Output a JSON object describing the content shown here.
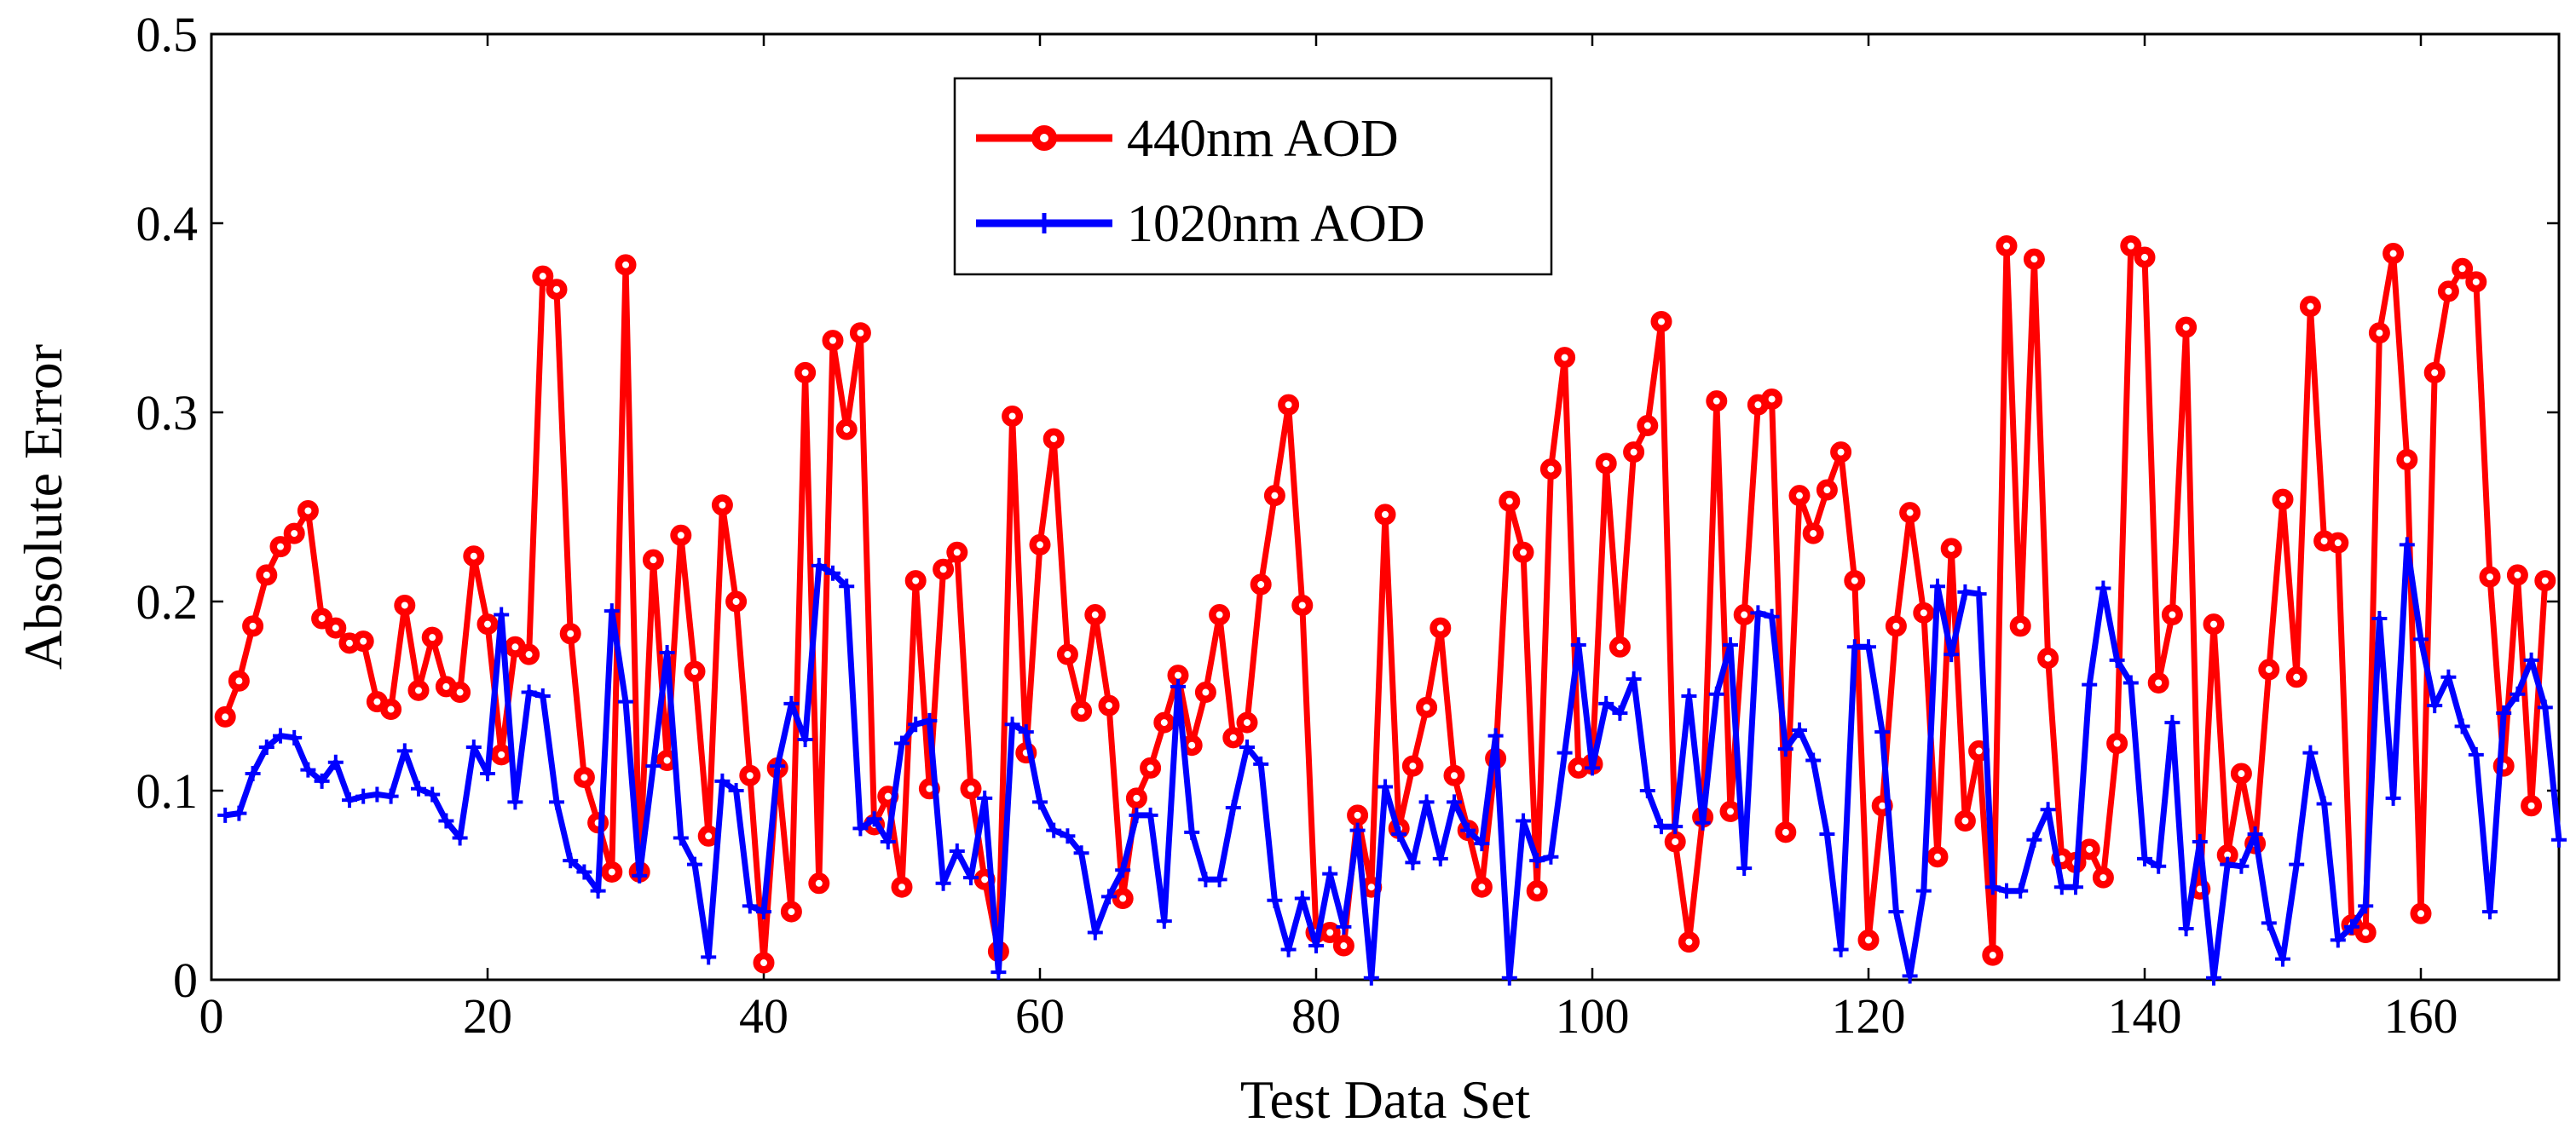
{
  "chart_data": {
    "type": "line",
    "title": "",
    "xlabel": "Test Data Set",
    "ylabel": "Absolute Error",
    "xlim": [
      0,
      170
    ],
    "ylim": [
      0,
      0.5
    ],
    "xticks": [
      0,
      20,
      40,
      60,
      80,
      100,
      120,
      140,
      160
    ],
    "yticks": [
      0,
      0.1,
      0.2,
      0.3,
      0.4,
      0.5
    ],
    "xtick_labels": [
      "0",
      "20",
      "40",
      "60",
      "80",
      "100",
      "120",
      "140",
      "160"
    ],
    "ytick_labels": [
      "0",
      "0.1",
      "0.2",
      "0.3",
      "0.4",
      "0.5"
    ],
    "grid": false,
    "legend_position": "top-center",
    "series": [
      {
        "name": "440nm AOD",
        "color": "#ff0000",
        "marker": "circle",
        "values": [
          0.139,
          0.158,
          0.187,
          0.214,
          0.229,
          0.236,
          0.248,
          0.191,
          0.186,
          0.178,
          0.179,
          0.147,
          0.143,
          0.198,
          0.153,
          0.181,
          0.155,
          0.152,
          0.224,
          0.188,
          0.119,
          0.176,
          0.172,
          0.372,
          0.365,
          0.183,
          0.107,
          0.083,
          0.057,
          0.378,
          0.057,
          0.222,
          0.116,
          0.235,
          0.163,
          0.076,
          0.251,
          0.2,
          0.108,
          0.009,
          0.112,
          0.036,
          0.321,
          0.051,
          0.338,
          0.291,
          0.342,
          0.082,
          0.097,
          0.049,
          0.211,
          0.101,
          0.217,
          0.226,
          0.101,
          0.053,
          0.015,
          0.298,
          0.12,
          0.23,
          0.286,
          0.172,
          0.142,
          0.193,
          0.145,
          0.043,
          0.096,
          0.112,
          0.136,
          0.161,
          0.124,
          0.152,
          0.193,
          0.128,
          0.136,
          0.209,
          0.256,
          0.304,
          0.198,
          0.025,
          0.025,
          0.018,
          0.087,
          0.049,
          0.246,
          0.08,
          0.113,
          0.144,
          0.186,
          0.108,
          0.079,
          0.049,
          0.117,
          0.253,
          0.226,
          0.047,
          0.27,
          0.329,
          0.112,
          0.114,
          0.273,
          0.176,
          0.279,
          0.293,
          0.348,
          0.073,
          0.02,
          0.086,
          0.306,
          0.089,
          0.193,
          0.304,
          0.307,
          0.078,
          0.256,
          0.236,
          0.259,
          0.279,
          0.211,
          0.021,
          0.092,
          0.187,
          0.247,
          0.194,
          0.065,
          0.228,
          0.084,
          0.121,
          0.013,
          0.388,
          0.187,
          0.381,
          0.17,
          0.064,
          0.062,
          0.069,
          0.054,
          0.125,
          0.388,
          0.382,
          0.157,
          0.193,
          0.345,
          0.048,
          0.188,
          0.066,
          0.109,
          0.072,
          0.164,
          0.254,
          0.16,
          0.356,
          0.232,
          0.231,
          0.029,
          0.025,
          0.342,
          0.384,
          0.275,
          0.035,
          0.321,
          0.364,
          0.376,
          0.369,
          0.213,
          0.113,
          0.214,
          0.092,
          0.211
        ]
      },
      {
        "name": "1020nm AOD",
        "color": "#0000ff",
        "marker": "plus",
        "values": [
          0.087,
          0.088,
          0.109,
          0.123,
          0.129,
          0.128,
          0.111,
          0.105,
          0.115,
          0.095,
          0.097,
          0.098,
          0.097,
          0.121,
          0.101,
          0.098,
          0.084,
          0.075,
          0.123,
          0.109,
          0.193,
          0.094,
          0.152,
          0.15,
          0.094,
          0.063,
          0.057,
          0.047,
          0.195,
          0.147,
          0.055,
          0.113,
          0.173,
          0.075,
          0.061,
          0.012,
          0.105,
          0.1,
          0.039,
          0.036,
          0.113,
          0.146,
          0.127,
          0.219,
          0.215,
          0.208,
          0.08,
          0.085,
          0.073,
          0.125,
          0.135,
          0.137,
          0.051,
          0.068,
          0.054,
          0.096,
          0.004,
          0.135,
          0.131,
          0.094,
          0.079,
          0.076,
          0.067,
          0.025,
          0.044,
          0.058,
          0.087,
          0.087,
          0.031,
          0.155,
          0.078,
          0.053,
          0.053,
          0.091,
          0.123,
          0.114,
          0.042,
          0.016,
          0.043,
          0.018,
          0.056,
          0.028,
          0.079,
          0.001,
          0.102,
          0.077,
          0.062,
          0.094,
          0.064,
          0.094,
          0.079,
          0.072,
          0.129,
          0.001,
          0.084,
          0.063,
          0.065,
          0.12,
          0.177,
          0.112,
          0.146,
          0.141,
          0.159,
          0.1,
          0.081,
          0.081,
          0.15,
          0.083,
          0.151,
          0.177,
          0.059,
          0.194,
          0.192,
          0.122,
          0.132,
          0.116,
          0.077,
          0.016,
          0.176,
          0.176,
          0.131,
          0.036,
          0.002,
          0.047,
          0.208,
          0.172,
          0.205,
          0.204,
          0.049,
          0.047,
          0.047,
          0.074,
          0.09,
          0.049,
          0.049,
          0.156,
          0.207,
          0.169,
          0.157,
          0.064,
          0.06,
          0.136,
          0.027,
          0.073,
          0.001,
          0.061,
          0.06,
          0.077,
          0.03,
          0.011,
          0.061,
          0.12,
          0.093,
          0.021,
          0.028,
          0.039,
          0.191,
          0.096,
          0.23,
          0.18,
          0.145,
          0.16,
          0.134,
          0.119,
          0.036,
          0.141,
          0.151,
          0.169,
          0.144,
          0.074
        ]
      }
    ]
  }
}
